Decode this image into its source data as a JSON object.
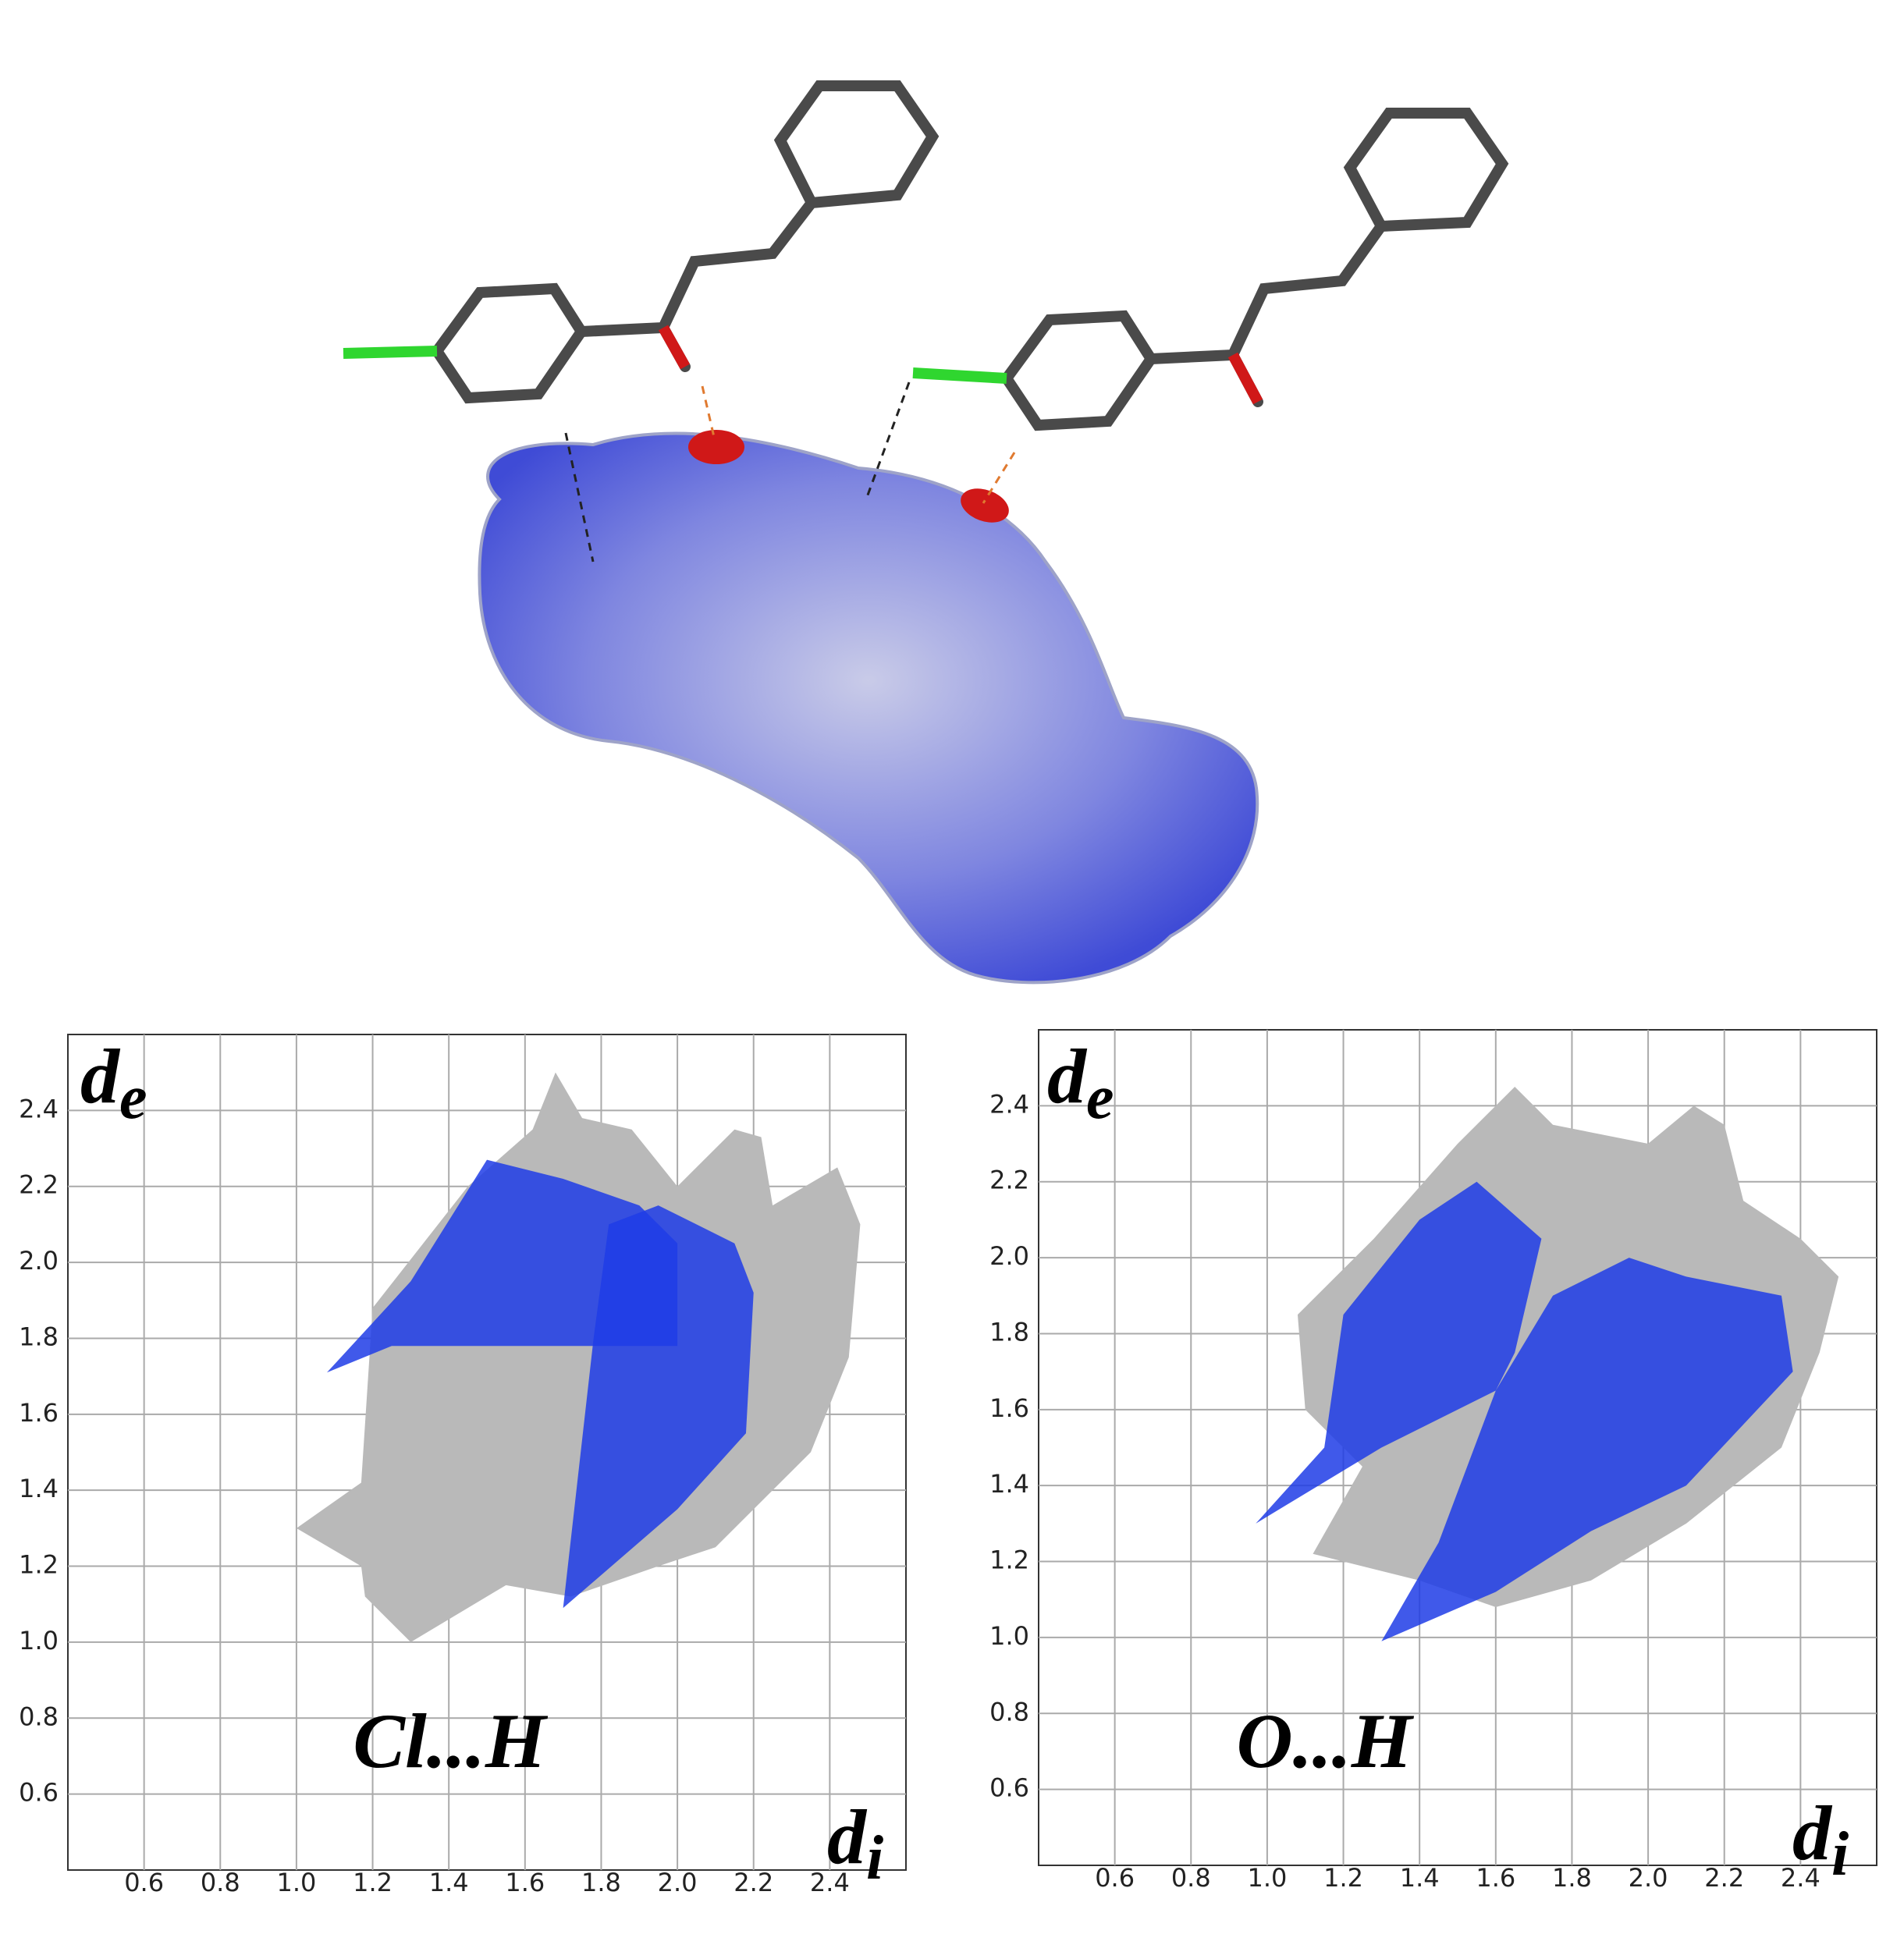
{
  "chart_data": [
    {
      "type": "fingerprint",
      "annotation": "Cl...H",
      "xlabel": "d",
      "xlabel_sub": "i",
      "ylabel": "d",
      "ylabel_sub": "e",
      "xlim": [
        0.4,
        2.6
      ],
      "ylim": [
        0.4,
        2.6
      ],
      "xticks": [
        0.6,
        0.8,
        {
          "value": 1,
          "label": "1.0"
        },
        1.2,
        1.4,
        1.6,
        1.8,
        {
          "value": 2,
          "label": "2.0"
        },
        2.2,
        2.4
      ],
      "yticks": [
        0.6,
        0.8,
        {
          "value": 1,
          "label": "1.0"
        },
        1.2,
        1.4,
        1.6,
        1.8,
        {
          "value": 2,
          "label": "2.0"
        },
        2.2,
        2.4
      ],
      "grid": true,
      "series": [
        {
          "color": "#b9b9b9",
          "x": [
            1.0,
            1.17,
            1.2,
            1.45,
            1.62,
            1.68,
            1.75,
            1.88,
            2.0,
            2.15,
            2.22,
            2.25,
            2.42,
            2.48,
            2.45,
            2.35,
            2.1,
            1.95,
            1.72,
            1.55,
            1.3,
            1.18,
            1.17
          ],
          "y": [
            1.3,
            1.42,
            1.88,
            2.2,
            2.35,
            2.5,
            2.38,
            2.35,
            2.2,
            2.35,
            2.33,
            2.15,
            2.25,
            2.1,
            1.75,
            1.5,
            1.25,
            1.2,
            1.12,
            1.15,
            1.0,
            1.12,
            1.2
          ]
        },
        {
          "color": "#1e3ce6",
          "x": [
            1.08,
            1.3,
            1.5,
            1.7,
            1.9,
            2.0,
            2.0,
            1.85,
            1.25
          ],
          "y": [
            1.71,
            1.95,
            2.27,
            2.22,
            2.15,
            2.05,
            1.78,
            1.78,
            1.78
          ]
        },
        {
          "color": "#1e3ce6",
          "x": [
            1.7,
            1.78,
            1.82,
            1.95,
            2.15,
            2.2,
            2.18,
            2.0
          ],
          "y": [
            1.09,
            1.8,
            2.1,
            2.15,
            2.05,
            1.92,
            1.55,
            1.35
          ]
        }
      ]
    },
    {
      "type": "fingerprint",
      "annotation": "O...H",
      "xlabel": "d",
      "xlabel_sub": "i",
      "ylabel": "d",
      "ylabel_sub": "e",
      "xlim": [
        0.4,
        2.6
      ],
      "ylim": [
        0.4,
        2.6
      ],
      "xticks": [
        0.6,
        0.8,
        {
          "value": 1,
          "label": "1.0"
        },
        1.2,
        1.4,
        1.6,
        1.8,
        {
          "value": 2,
          "label": "2.0"
        },
        2.2,
        2.4
      ],
      "yticks": [
        0.6,
        0.8,
        {
          "value": 1,
          "label": "1.0"
        },
        1.2,
        1.4,
        1.6,
        1.8,
        {
          "value": 2,
          "label": "2.0"
        },
        2.2,
        2.4
      ],
      "grid": true,
      "series": [
        {
          "color": "#b9b9b9",
          "x": [
            1.25,
            1.1,
            1.08,
            1.28,
            1.5,
            1.65,
            1.75,
            2.0,
            2.12,
            2.2,
            2.25,
            2.4,
            2.5,
            2.45,
            2.35,
            2.1,
            1.85,
            1.6,
            1.4,
            1.12
          ],
          "y": [
            1.45,
            1.6,
            1.85,
            2.05,
            2.3,
            2.45,
            2.35,
            2.3,
            2.4,
            2.35,
            2.15,
            2.05,
            1.95,
            1.75,
            1.5,
            1.3,
            1.15,
            1.08,
            1.15,
            1.22
          ]
        },
        {
          "color": "#1e3ce6",
          "x": [
            0.97,
            1.15,
            1.2,
            1.4,
            1.55,
            1.72,
            1.65,
            1.6,
            1.3
          ],
          "y": [
            1.3,
            1.5,
            1.85,
            2.1,
            2.2,
            2.05,
            1.75,
            1.65,
            1.5
          ]
        },
        {
          "color": "#1e3ce6",
          "x": [
            1.3,
            1.45,
            1.6,
            1.75,
            1.95,
            2.1,
            2.35,
            2.38,
            2.1,
            1.85,
            1.6
          ],
          "y": [
            0.99,
            1.25,
            1.65,
            1.9,
            2.0,
            1.95,
            1.9,
            1.7,
            1.4,
            1.28,
            1.12
          ]
        }
      ]
    }
  ]
}
